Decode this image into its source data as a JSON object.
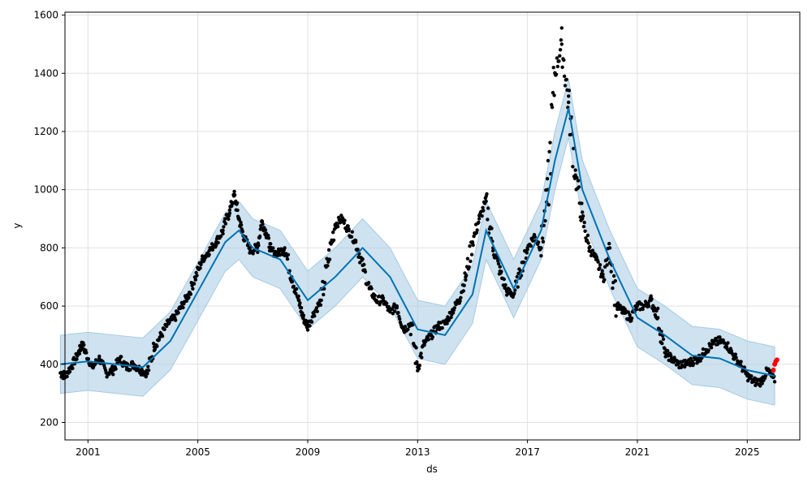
{
  "chart_data": {
    "type": "scatter",
    "title": "",
    "xlabel": "ds",
    "ylabel": "y",
    "xlim": [
      "2000-03-01",
      "2026-12-01"
    ],
    "ylim": [
      140,
      1610
    ],
    "x_ticks": [
      "2001",
      "2005",
      "2009",
      "2013",
      "2017",
      "2021",
      "2025"
    ],
    "y_ticks": [
      "200",
      "400",
      "600",
      "800",
      "1000",
      "1200",
      "1400",
      "1600"
    ],
    "grid": true,
    "legend": "none",
    "colors": {
      "observed": "#000000",
      "forecast": "#0072B2",
      "interval": "#a6cbe3",
      "future_points": "#ff0000"
    },
    "observed_points": {
      "x": [
        "2000-01-01",
        "2000-03-01",
        "2000-06-01",
        "2000-09-01",
        "2000-10-15",
        "2000-12-01",
        "2001-03-01",
        "2001-06-01",
        "2001-09-01",
        "2001-12-01",
        "2002-03-01",
        "2002-06-01",
        "2002-09-01",
        "2002-12-01",
        "2003-03-01",
        "2003-06-01",
        "2003-09-01",
        "2003-12-01",
        "2004-03-01",
        "2004-06-01",
        "2004-09-01",
        "2004-12-01",
        "2005-03-01",
        "2005-06-01",
        "2005-09-01",
        "2005-12-01",
        "2006-03-01",
        "2006-05-01",
        "2006-07-01",
        "2006-09-01",
        "2006-12-01",
        "2007-03-01",
        "2007-05-01",
        "2007-07-01",
        "2007-09-01",
        "2007-12-01",
        "2008-03-01",
        "2008-06-01",
        "2008-09-01",
        "2008-11-01",
        "2009-01-01",
        "2009-04-01",
        "2009-07-01",
        "2009-10-01",
        "2010-01-01",
        "2010-04-01",
        "2010-07-01",
        "2010-10-01",
        "2011-01-01",
        "2011-04-01",
        "2011-07-01",
        "2011-10-01",
        "2012-01-01",
        "2012-04-01",
        "2012-07-01",
        "2012-10-01",
        "2013-01-01",
        "2013-04-01",
        "2013-07-01",
        "2013-10-01",
        "2014-01-01",
        "2014-04-01",
        "2014-07-01",
        "2014-10-01",
        "2015-01-01",
        "2015-04-01",
        "2015-07-01",
        "2015-10-01",
        "2016-01-01",
        "2016-04-01",
        "2016-07-01",
        "2016-10-01",
        "2017-01-01",
        "2017-04-01",
        "2017-07-01",
        "2017-10-01",
        "2018-01-01",
        "2018-04-01",
        "2018-07-01",
        "2018-10-01",
        "2019-01-01",
        "2019-04-01",
        "2019-07-01",
        "2019-10-01",
        "2020-01-01",
        "2020-04-01",
        "2020-07-01",
        "2020-10-01",
        "2021-01-01",
        "2021-04-01",
        "2021-07-01",
        "2021-10-01",
        "2022-01-01",
        "2022-04-01",
        "2022-07-01",
        "2022-10-01",
        "2023-01-01",
        "2023-04-01",
        "2023-07-01",
        "2023-10-01",
        "2024-01-01",
        "2024-04-01",
        "2024-07-01",
        "2024-10-01",
        "2025-01-01",
        "2025-04-01",
        "2025-07-01",
        "2025-10-01",
        "2026-01-01"
      ],
      "y": [
        370,
        360,
        395,
        440,
        470,
        440,
        390,
        420,
        370,
        380,
        420,
        390,
        400,
        380,
        370,
        460,
        500,
        540,
        560,
        600,
        640,
        700,
        760,
        790,
        820,
        860,
        930,
        980,
        900,
        840,
        790,
        800,
        890,
        850,
        790,
        780,
        800,
        700,
        620,
        560,
        530,
        580,
        620,
        760,
        880,
        900,
        860,
        820,
        740,
        660,
        620,
        620,
        580,
        600,
        520,
        540,
        390,
        470,
        500,
        530,
        540,
        580,
        620,
        700,
        820,
        900,
        960,
        800,
        720,
        650,
        640,
        720,
        800,
        840,
        800,
        1000,
        1400,
        1500,
        1300,
        1050,
        900,
        800,
        760,
        700,
        800,
        600,
        580,
        560,
        600,
        600,
        620,
        560,
        440,
        420,
        400,
        400,
        410,
        420,
        450,
        470,
        480,
        470,
        430,
        400,
        360,
        340,
        340,
        380,
        340
      ]
    },
    "forecast_line": {
      "x": [
        "2000-01-01",
        "2001-01-01",
        "2002-01-01",
        "2003-01-01",
        "2004-01-01",
        "2005-01-01",
        "2006-01-01",
        "2006-07-01",
        "2007-01-01",
        "2008-01-01",
        "2009-01-01",
        "2010-01-01",
        "2011-01-01",
        "2012-01-01",
        "2013-01-01",
        "2014-01-01",
        "2015-01-01",
        "2015-07-01",
        "2016-01-01",
        "2016-07-01",
        "2017-01-01",
        "2017-07-01",
        "2018-01-01",
        "2018-07-01",
        "2019-01-01",
        "2020-01-01",
        "2021-01-01",
        "2022-01-01",
        "2023-01-01",
        "2024-01-01",
        "2025-01-01",
        "2026-01-01"
      ],
      "y": [
        400,
        410,
        400,
        390,
        480,
        650,
        820,
        860,
        800,
        760,
        620,
        700,
        800,
        700,
        520,
        500,
        640,
        860,
        760,
        660,
        760,
        860,
        1100,
        1280,
        1000,
        760,
        560,
        500,
        430,
        420,
        380,
        360
      ]
    },
    "interval_width": 100,
    "future_points": {
      "x": [
        "2025-12-15",
        "2026-01-01",
        "2026-01-15",
        "2026-02-01"
      ],
      "y": [
        380,
        400,
        410,
        415
      ]
    }
  }
}
